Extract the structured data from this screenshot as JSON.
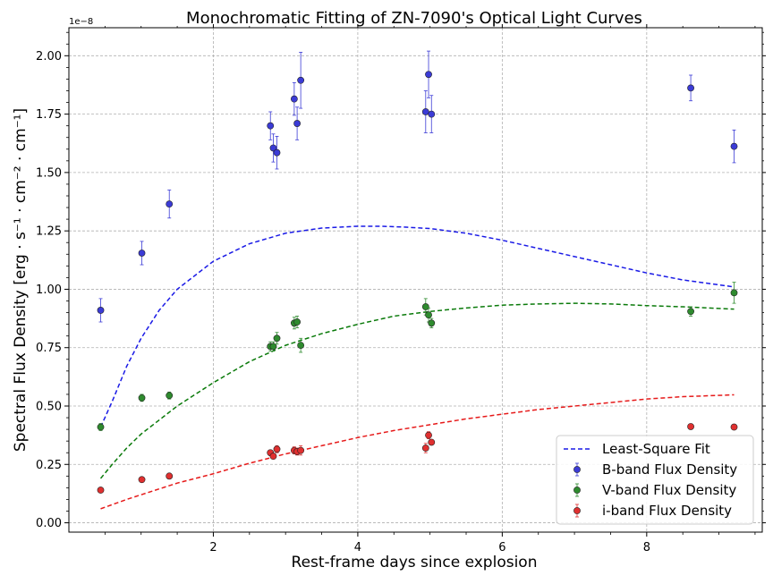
{
  "chart_data": {
    "type": "scatter",
    "title": "Monochromatic Fitting of ZN-7090's Optical Light Curves",
    "xlabel": "Rest-frame days since explosion",
    "ylabel": "Spectral Flux Density [erg · s⁻¹ · cm⁻² · cm⁻¹]",
    "y_scale_note": "1e−8",
    "xlim": [
      0.0,
      9.6
    ],
    "ylim": [
      -0.04,
      2.12
    ],
    "x_ticks": [
      2,
      4,
      6,
      8
    ],
    "x_tick_labels": [
      "2",
      "4",
      "6",
      "8"
    ],
    "y_ticks": [
      0.0,
      0.25,
      0.5,
      0.75,
      1.0,
      1.25,
      1.5,
      1.75,
      2.0
    ],
    "y_tick_labels": [
      "0.00",
      "0.25",
      "0.50",
      "0.75",
      "1.00",
      "1.25",
      "1.50",
      "1.75",
      "2.00"
    ],
    "grid": true,
    "legend_position": "bottom-right",
    "legend": [
      "Least-Square Fit",
      "B-band Flux Density",
      "V-band Flux Density",
      "i-band Flux Density"
    ],
    "series": [
      {
        "name": "B-band Flux Density",
        "color": "#3b3bd6",
        "x": [
          0.44,
          1.01,
          1.39,
          2.79,
          2.83,
          2.88,
          3.12,
          3.16,
          3.21,
          4.94,
          4.98,
          5.02,
          8.61,
          9.21
        ],
        "y": [
          0.91,
          1.155,
          1.365,
          1.7,
          1.605,
          1.585,
          1.815,
          1.71,
          1.895,
          1.76,
          1.92,
          1.75,
          1.862,
          1.612
        ],
        "yerr": [
          0.05,
          0.05,
          0.06,
          0.06,
          0.06,
          0.07,
          0.07,
          0.07,
          0.12,
          0.09,
          0.1,
          0.08,
          0.055,
          0.07
        ]
      },
      {
        "name": "V-band Flux Density",
        "color": "#2e8b2e",
        "x": [
          0.44,
          1.01,
          1.39,
          2.79,
          2.83,
          2.88,
          3.12,
          3.16,
          3.21,
          4.94,
          4.98,
          5.02,
          8.61,
          9.21
        ],
        "y": [
          0.41,
          0.535,
          0.545,
          0.755,
          0.755,
          0.79,
          0.855,
          0.86,
          0.76,
          0.925,
          0.89,
          0.855,
          0.905,
          0.985
        ],
        "yerr": [
          0.015,
          0.015,
          0.015,
          0.02,
          0.02,
          0.025,
          0.025,
          0.025,
          0.03,
          0.035,
          0.03,
          0.02,
          0.02,
          0.045
        ]
      },
      {
        "name": "i-band Flux Density",
        "color": "#e03030",
        "x": [
          0.44,
          1.01,
          1.39,
          2.79,
          2.83,
          2.88,
          3.12,
          3.16,
          3.21,
          4.94,
          4.98,
          5.02,
          8.61,
          9.21
        ],
        "y": [
          0.14,
          0.185,
          0.2,
          0.3,
          0.285,
          0.315,
          0.31,
          0.305,
          0.31,
          0.32,
          0.375,
          0.345,
          0.412,
          0.41
        ],
        "yerr": [
          0.008,
          0.008,
          0.008,
          0.01,
          0.01,
          0.015,
          0.015,
          0.015,
          0.02,
          0.02,
          0.015,
          0.01,
          0.008,
          0.008
        ]
      }
    ],
    "fits": [
      {
        "name": "B-band fit",
        "color": "#1a1ae6",
        "x": [
          0.44,
          0.6,
          0.8,
          1.0,
          1.25,
          1.5,
          2.0,
          2.5,
          3.0,
          3.5,
          4.0,
          4.3,
          4.6,
          5.0,
          5.5,
          6.0,
          6.5,
          7.0,
          7.5,
          8.0,
          8.5,
          9.21
        ],
        "y": [
          0.41,
          0.52,
          0.67,
          0.79,
          0.91,
          1.0,
          1.12,
          1.195,
          1.24,
          1.262,
          1.27,
          1.27,
          1.267,
          1.26,
          1.24,
          1.21,
          1.175,
          1.14,
          1.105,
          1.07,
          1.04,
          1.01
        ]
      },
      {
        "name": "V-band fit",
        "color": "#0a7a0a",
        "x": [
          0.44,
          0.6,
          0.8,
          1.0,
          1.25,
          1.5,
          2.0,
          2.5,
          3.0,
          3.5,
          4.0,
          4.5,
          5.0,
          5.5,
          6.0,
          6.5,
          7.0,
          7.5,
          8.0,
          8.5,
          9.21
        ],
        "y": [
          0.19,
          0.25,
          0.32,
          0.38,
          0.44,
          0.5,
          0.6,
          0.69,
          0.76,
          0.81,
          0.85,
          0.885,
          0.905,
          0.92,
          0.932,
          0.937,
          0.94,
          0.937,
          0.93,
          0.925,
          0.915
        ]
      },
      {
        "name": "i-band fit",
        "color": "#e61a1a",
        "x": [
          0.44,
          0.8,
          1.0,
          1.5,
          2.0,
          2.5,
          3.0,
          3.5,
          4.0,
          4.5,
          5.0,
          5.5,
          6.0,
          6.5,
          7.0,
          7.5,
          8.0,
          8.5,
          9.21
        ],
        "y": [
          0.06,
          0.1,
          0.12,
          0.17,
          0.21,
          0.255,
          0.295,
          0.33,
          0.365,
          0.395,
          0.42,
          0.445,
          0.465,
          0.485,
          0.5,
          0.515,
          0.53,
          0.54,
          0.548
        ]
      }
    ]
  }
}
